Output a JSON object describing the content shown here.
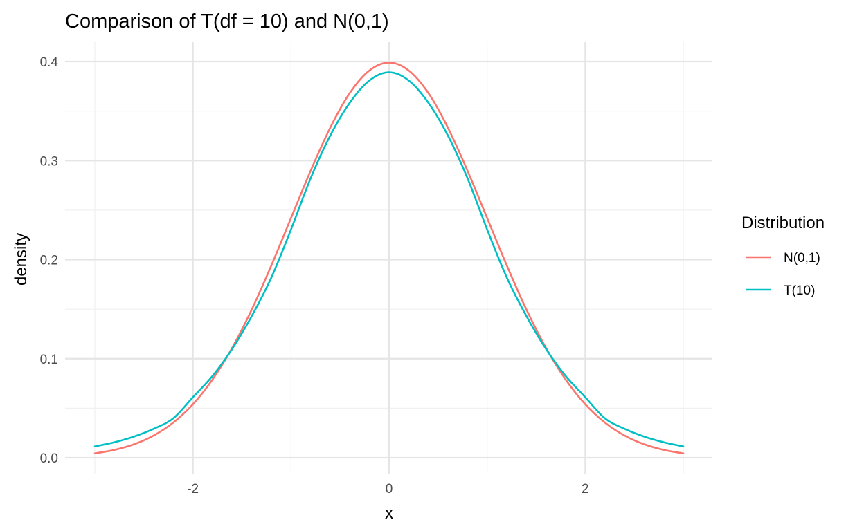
{
  "chart_data": {
    "type": "line",
    "title": "Comparison of T(df = 10) and N(0,1)",
    "xlabel": "x",
    "ylabel": "density",
    "xlim": [
      -3,
      3
    ],
    "ylim": [
      0,
      0.4
    ],
    "x_ticks": [
      -2,
      0,
      2
    ],
    "x_tick_labels": [
      "-2",
      "0",
      "2"
    ],
    "y_ticks": [
      0.0,
      0.1,
      0.2,
      0.3,
      0.4
    ],
    "y_tick_labels": [
      "0.0",
      "0.1",
      "0.2",
      "0.3",
      "0.4"
    ],
    "grid": true,
    "legend": {
      "title": "Distribution",
      "placement": "right"
    },
    "x": [
      -3.0,
      -2.8,
      -2.6,
      -2.4,
      -2.2,
      -2.0,
      -1.8,
      -1.6,
      -1.4,
      -1.2,
      -1.0,
      -0.8,
      -0.6,
      -0.4,
      -0.2,
      0.0,
      0.2,
      0.4,
      0.6,
      0.8,
      1.0,
      1.2,
      1.4,
      1.6,
      1.8,
      2.0,
      2.2,
      2.4,
      2.6,
      2.8,
      3.0
    ],
    "series": [
      {
        "name": "N(0,1)",
        "color": "#F8766D",
        "values": [
          0.0044,
          0.0079,
          0.0136,
          0.0224,
          0.0355,
          0.054,
          0.079,
          0.1109,
          0.1497,
          0.1942,
          0.242,
          0.2897,
          0.3332,
          0.3683,
          0.391,
          0.3989,
          0.391,
          0.3683,
          0.3332,
          0.2897,
          0.242,
          0.1942,
          0.1497,
          0.1109,
          0.079,
          0.054,
          0.0355,
          0.0224,
          0.0136,
          0.0079,
          0.0044
        ]
      },
      {
        "name": "T(10)",
        "color": "#00BFC4",
        "values": [
          0.0114,
          0.0156,
          0.0214,
          0.0292,
          0.0398,
          0.0611,
          0.0826,
          0.1098,
          0.1431,
          0.182,
          0.2304,
          0.2821,
          0.3252,
          0.3585,
          0.3809,
          0.3891,
          0.3809,
          0.3585,
          0.3252,
          0.2821,
          0.2304,
          0.182,
          0.1431,
          0.1098,
          0.0826,
          0.0611,
          0.0398,
          0.0292,
          0.0214,
          0.0156,
          0.0114
        ]
      }
    ]
  }
}
